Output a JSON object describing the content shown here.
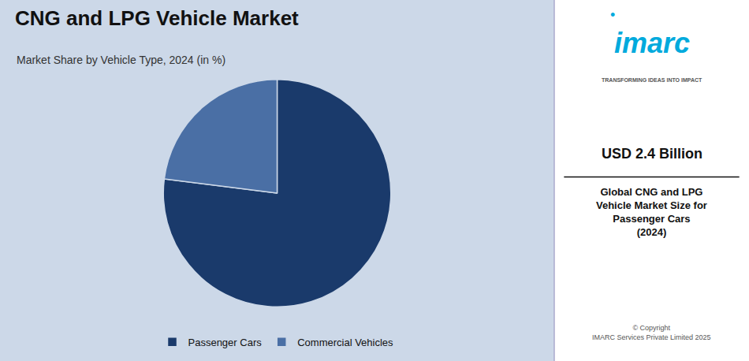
{
  "chart_data": {
    "type": "pie",
    "title": "CNG and LPG Vehicle Market",
    "subtitle": "Market Share by Vehicle Type, 2024 (in %)",
    "categories": [
      "Passenger Cars",
      "Commercial Vehicles"
    ],
    "values": [
      77,
      23
    ],
    "colors": [
      "#1a3a6b",
      "#4a6fa5"
    ],
    "legend": "bottom",
    "annotations": [
      "•",
      "imarc",
      "TRANSFORMING IDEAS INTO IMPACT",
      "USD 2.4 Billion",
      "Global CNG and LPG\nVehicle Market Size for\nPassenger Cars\n(2024)",
      "© Copyright\nIMARC Services Private Limited 2025"
    ]
  }
}
